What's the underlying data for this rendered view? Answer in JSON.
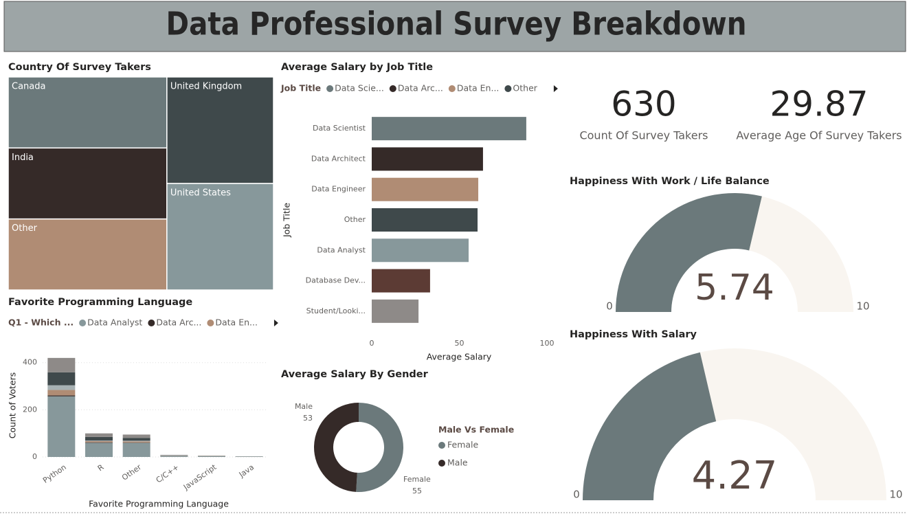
{
  "title": "Data Professional Survey Breakdown",
  "cards": [
    {
      "value": 630,
      "label": "Count Of Survey Takers"
    },
    {
      "value": 29.87,
      "label": "Average Age Of Survey Takers"
    }
  ],
  "chart_data": [
    {
      "type": "treemap",
      "title": "Country Of Survey Takers",
      "categories": [
        "Canada",
        "India",
        "Other",
        "United Kingdom",
        "United States"
      ],
      "values": [
        126,
        126,
        126,
        127,
        127
      ],
      "colors": [
        "#6b797b",
        "#352a28",
        "#b08c74",
        "#3f494b",
        "#87989b"
      ]
    },
    {
      "type": "bar",
      "stacked": true,
      "title": "Favorite Programming Language",
      "legend_title": "Q1 - Which ...",
      "categories": [
        "Python",
        "R",
        "Other",
        "C/C++",
        "JavaScript",
        "Java"
      ],
      "series": [
        {
          "name": "Data Analyst",
          "color": "#87989b",
          "values": [
            257,
            60,
            60,
            5,
            4,
            2
          ]
        },
        {
          "name": "Data Arc...",
          "color": "#352a28",
          "values": [
            4,
            2,
            1,
            0,
            0,
            0
          ]
        },
        {
          "name": "Data En...",
          "color": "#b08c74",
          "values": [
            23,
            5,
            5,
            1,
            1,
            0
          ]
        },
        {
          "color": "#a7b1b3",
          "values": [
            20,
            3,
            3,
            1,
            0,
            0
          ]
        },
        {
          "color": "#3f494b",
          "values": [
            55,
            15,
            12,
            1,
            0,
            0
          ]
        },
        {
          "color": "#8e8a88",
          "values": [
            61,
            15,
            14,
            1,
            1,
            1
          ]
        }
      ],
      "ylim": [
        0,
        440
      ],
      "yticks": [
        0,
        200,
        400
      ],
      "grid": true,
      "xlabel": "Favorite Programming Language",
      "ylabel": "Count of Voters"
    },
    {
      "type": "bar",
      "orientation": "horizontal",
      "title": "Average Salary by Job Title",
      "legend_title": "Job Title",
      "legend": [
        "Data Scie...",
        "Data Arc...",
        "Data En...",
        "Other"
      ],
      "categories": [
        "Data Scientist",
        "Data Architect",
        "Data Engineer",
        "Other",
        "Data Analyst",
        "Database Dev...",
        "Student/Looki..."
      ],
      "values": [
        88.2,
        63.5,
        60.8,
        60.4,
        55.3,
        33.3,
        26.7
      ],
      "colors": [
        "#6b797b",
        "#352a28",
        "#b08c74",
        "#3f494b",
        "#87989b",
        "#5c3b34",
        "#8e8a88"
      ],
      "xlim": [
        0,
        100
      ],
      "xticks": [
        0,
        50,
        100
      ],
      "xlabel": "Average Salary",
      "ylabel": "Job Title"
    },
    {
      "type": "donut",
      "title": "Average Salary By Gender",
      "legend_title": "Male Vs Female",
      "categories": [
        "Female",
        "Male"
      ],
      "values": [
        55,
        53
      ],
      "colors": [
        "#6b797b",
        "#352a28"
      ]
    },
    {
      "type": "gauge",
      "title": "Happiness With Work / Life Balance",
      "value": 5.74,
      "range": [
        0,
        10
      ],
      "color": "#6b797b",
      "track": "#f9f5f0"
    },
    {
      "type": "gauge",
      "title": "Happiness With Salary",
      "value": 4.27,
      "range": [
        0,
        10
      ],
      "color": "#6b797b",
      "track": "#f9f5f0"
    }
  ]
}
